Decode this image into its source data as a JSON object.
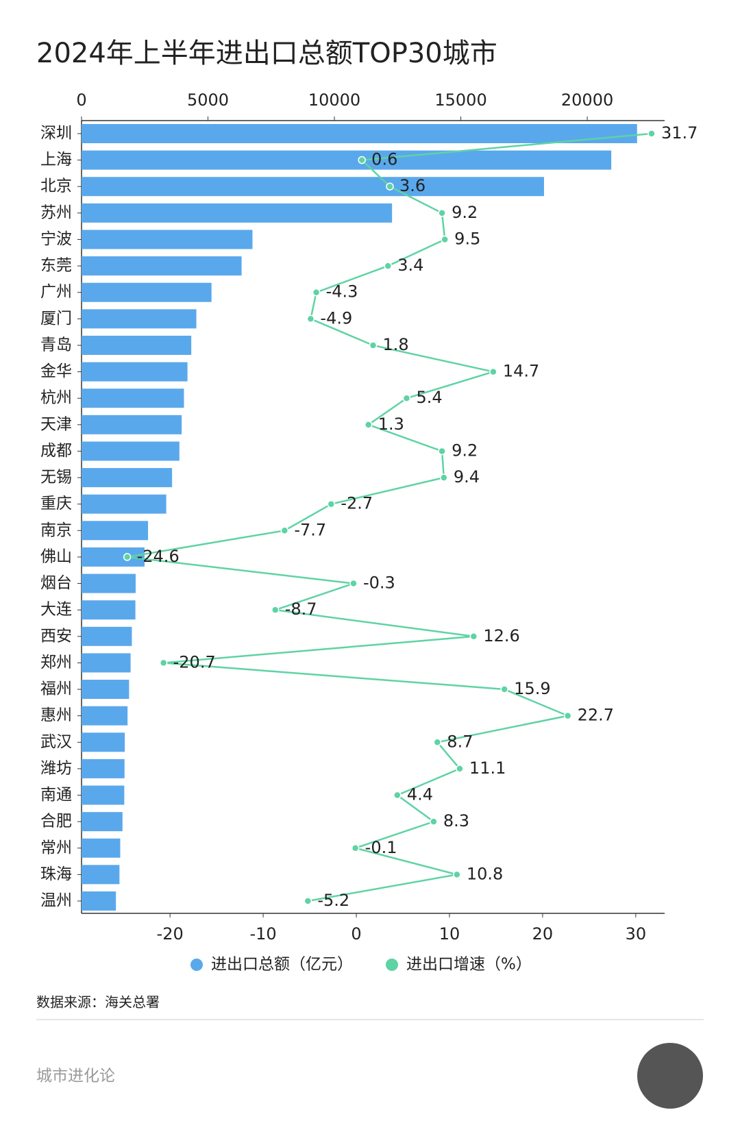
{
  "chart_data": {
    "type": "bar",
    "title": "2024年上半年进出口总额TOP30城市",
    "categories": [
      "深圳",
      "上海",
      "北京",
      "苏州",
      "宁波",
      "东莞",
      "广州",
      "厦门",
      "青岛",
      "金华",
      "杭州",
      "天津",
      "成都",
      "无锡",
      "重庆",
      "南京",
      "佛山",
      "烟台",
      "大连",
      "西安",
      "郑州",
      "福州",
      "惠州",
      "武汉",
      "潍坊",
      "南通",
      "合肥",
      "常州",
      "珠海",
      "温州"
    ],
    "series": [
      {
        "name": "进出口总额（亿元）",
        "color": "#5aa8ec",
        "type": "bar",
        "values": [
          21970,
          20950,
          18290,
          12280,
          6760,
          6330,
          5140,
          4540,
          4340,
          4190,
          4050,
          3960,
          3870,
          3580,
          3350,
          2630,
          2490,
          2140,
          2130,
          1990,
          1940,
          1880,
          1820,
          1710,
          1700,
          1690,
          1620,
          1530,
          1500,
          1360
        ]
      },
      {
        "name": "进出口增速（%）",
        "color": "#5ed3a4",
        "type": "line",
        "axis": "x2",
        "values": [
          31.7,
          0.6,
          3.6,
          9.2,
          9.5,
          3.4,
          -4.3,
          -4.9,
          1.8,
          14.7,
          5.4,
          1.3,
          9.2,
          9.4,
          -2.7,
          -7.7,
          -24.6,
          -0.3,
          -8.7,
          12.6,
          -20.7,
          15.9,
          22.7,
          8.7,
          11.1,
          4.4,
          8.3,
          -0.1,
          10.8,
          -5.2
        ]
      }
    ],
    "xlim": [
      0,
      23060
    ],
    "xticks": [
      0,
      5000,
      10000,
      15000,
      20000
    ],
    "x2lim": [
      -29.5,
      33.1
    ],
    "x2ticks": [
      -20,
      -10,
      0,
      10,
      20,
      30
    ],
    "source": "数据来源：海关总署",
    "brand": "城市进化论"
  }
}
